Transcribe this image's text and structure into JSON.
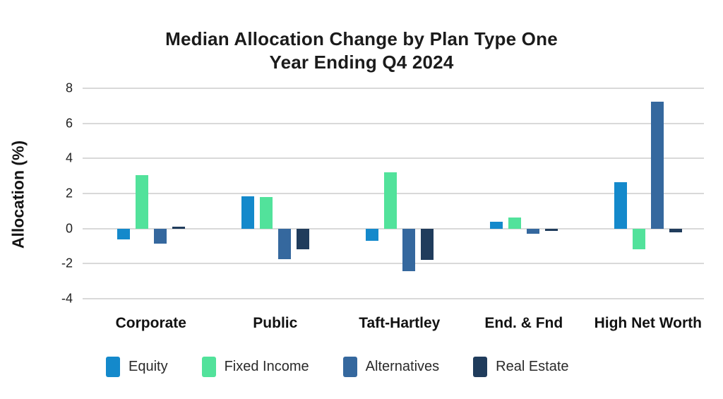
{
  "header": {
    "title_line1": "Median Allocation Change by Plan Type One",
    "title_line2": "Year Ending Q4 2024"
  },
  "chart_data": {
    "type": "bar",
    "title": "Median Allocation Change by Plan Type One Year Ending Q4 2024",
    "xlabel": "",
    "ylabel": "Allocation (%)",
    "ylim": [
      -4,
      8
    ],
    "yticks": [
      8,
      6,
      4,
      2,
      0,
      -2,
      -4
    ],
    "grid": true,
    "gridline_color": "#d9d9d9",
    "legend_position": "bottom",
    "categories": [
      "Corporate",
      "Public",
      "Taft-Hartley",
      "End. & Fnd",
      "High Net Worth"
    ],
    "series": [
      {
        "name": "Equity",
        "color": "#1489cb",
        "values": [
          -0.6,
          1.85,
          -0.7,
          0.4,
          2.65
        ]
      },
      {
        "name": "Fixed Income",
        "color": "#52e29b",
        "values": [
          3.05,
          1.8,
          3.2,
          0.65,
          -1.2
        ]
      },
      {
        "name": "Alternatives",
        "color": "#35689e",
        "values": [
          -0.85,
          -1.75,
          -2.45,
          -0.3,
          7.25
        ]
      },
      {
        "name": "Real Estate",
        "color": "#203c5c",
        "values": [
          0.1,
          -1.2,
          -1.8,
          -0.15,
          -0.2
        ]
      }
    ]
  }
}
